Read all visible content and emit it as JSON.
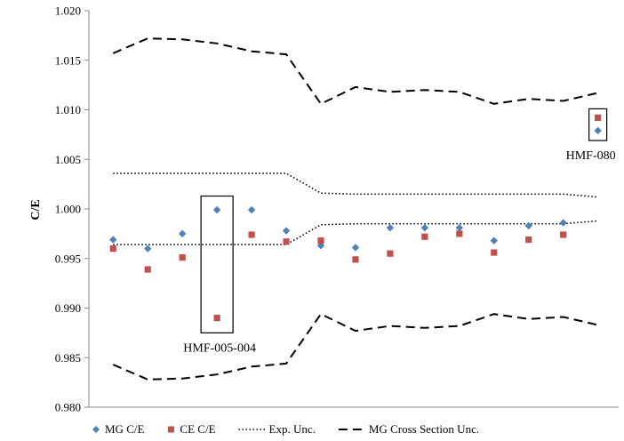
{
  "chart_data": {
    "type": "scatter",
    "title": "",
    "xlabel": "",
    "ylabel": "C/E",
    "ylim": [
      0.98,
      1.02
    ],
    "yticks": [
      "0.980",
      "0.985",
      "0.990",
      "0.995",
      "1.000",
      "1.005",
      "1.010",
      "1.015",
      "1.020"
    ],
    "x": [
      1,
      2,
      3,
      4,
      5,
      6,
      7,
      8,
      9,
      10,
      11,
      12,
      13,
      14,
      15
    ],
    "xlim": [
      0.3,
      15.6
    ],
    "grid": false,
    "legend_position": "bottom",
    "series": [
      {
        "name": "MG C/E",
        "kind": "marker",
        "marker": "diamond",
        "color": "#4f81bd",
        "values": [
          0.9969,
          0.996,
          0.9975,
          0.9999,
          0.9999,
          0.9978,
          0.9963,
          0.9961,
          0.9981,
          0.9981,
          0.9981,
          0.9968,
          0.9983,
          0.9986,
          1.0079
        ]
      },
      {
        "name": "CE C/E",
        "kind": "marker",
        "marker": "square",
        "color": "#c0504d",
        "values": [
          0.996,
          0.9939,
          0.9951,
          0.989,
          0.9974,
          0.9967,
          0.9968,
          0.9949,
          0.9955,
          0.9972,
          0.9975,
          0.9956,
          0.9969,
          0.9974,
          1.0092
        ]
      },
      {
        "name": "Exp. Unc.",
        "kind": "line",
        "style": "dotted",
        "color": "#000000",
        "bands": [
          [
            1.0036,
            1.0036,
            1.0036,
            1.0036,
            1.0036,
            1.0036,
            1.0016,
            1.0015,
            1.0015,
            1.0015,
            1.0015,
            1.0015,
            1.0015,
            1.0015,
            1.0012
          ],
          [
            0.9964,
            0.9964,
            0.9964,
            0.9964,
            0.9964,
            0.9964,
            0.9984,
            0.9985,
            0.9985,
            0.9985,
            0.9985,
            0.9985,
            0.9985,
            0.9985,
            0.9988
          ]
        ]
      },
      {
        "name": "MG Cross Section Unc.",
        "kind": "line",
        "style": "dashed",
        "color": "#000000",
        "bands": [
          [
            1.0157,
            1.0172,
            1.0171,
            1.0167,
            1.0159,
            1.0156,
            1.0106,
            1.0123,
            1.0118,
            1.012,
            1.0118,
            1.0106,
            1.0111,
            1.0109,
            1.0117
          ],
          [
            0.9843,
            0.9828,
            0.9829,
            0.9833,
            0.9841,
            0.9844,
            0.9894,
            0.9877,
            0.9882,
            0.988,
            0.9882,
            0.9894,
            0.9889,
            0.9891,
            0.9883
          ]
        ]
      }
    ],
    "annotations": [
      {
        "text": "HMF-005-004",
        "x_index": 4,
        "box_ymin": 0.9875,
        "box_ymax": 1.0013,
        "label_position": "below"
      },
      {
        "text": "HMF-080",
        "x_index": 15,
        "box_ymin": 1.0069,
        "box_ymax": 1.0101,
        "label_position": "below"
      }
    ]
  }
}
